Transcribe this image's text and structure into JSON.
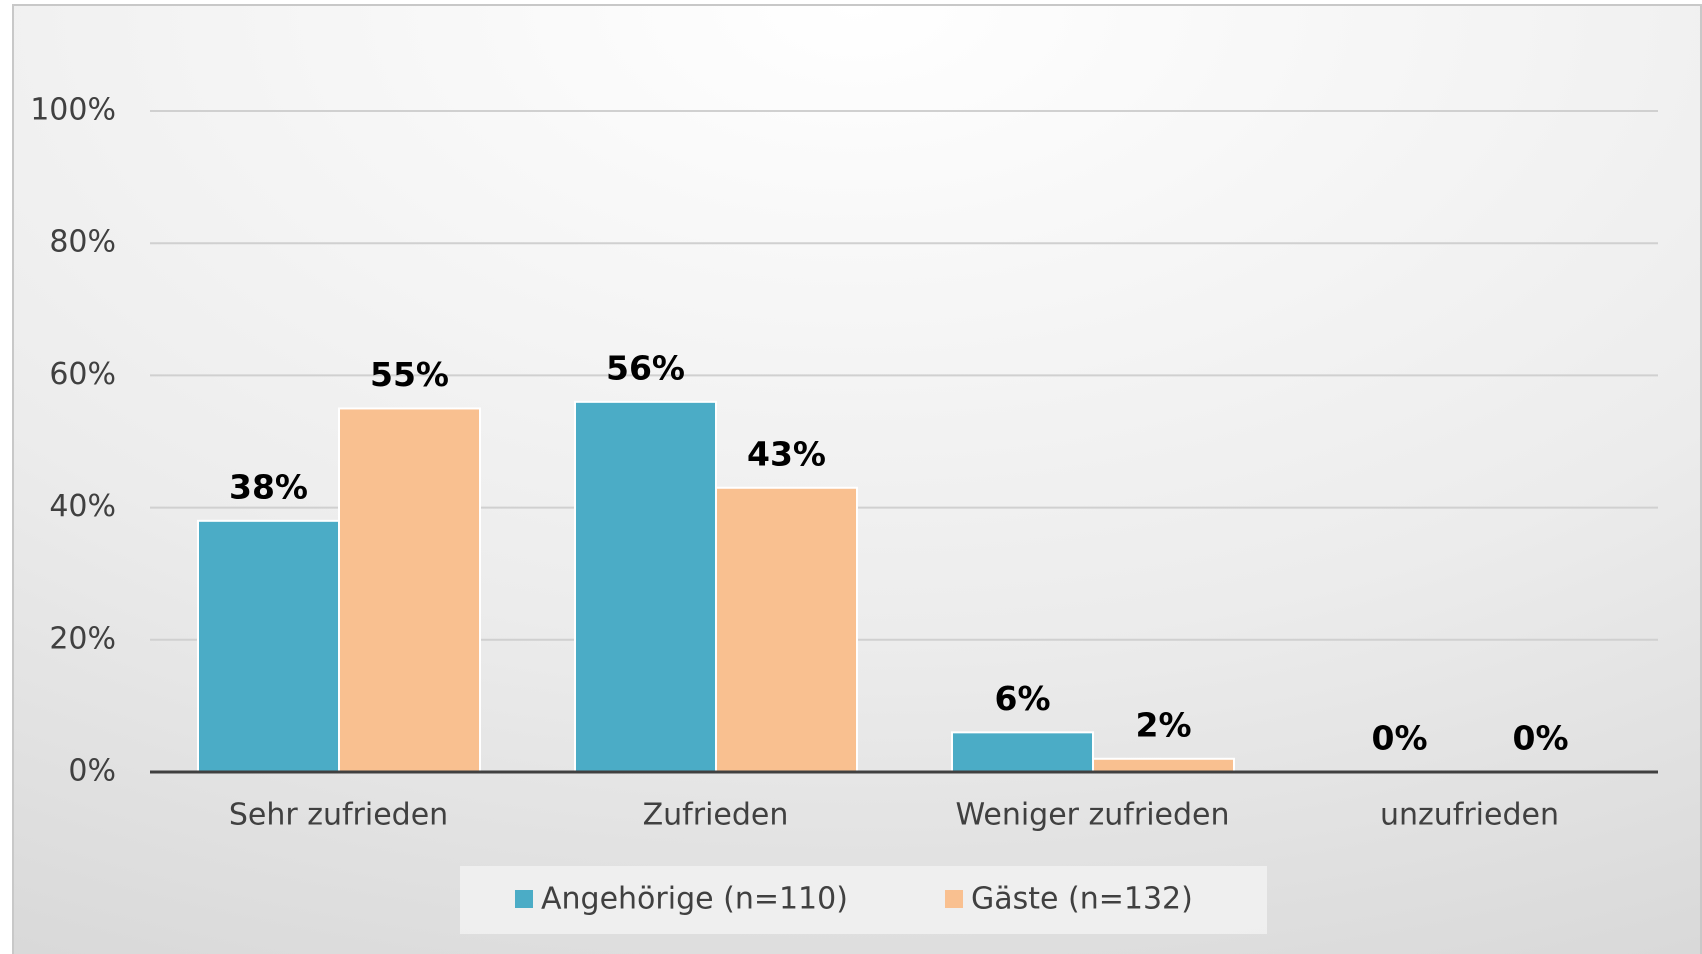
{
  "chart_data": {
    "type": "bar",
    "categories": [
      "Sehr zufrieden",
      "Zufrieden",
      "Weniger zufrieden",
      "unzufrieden"
    ],
    "series": [
      {
        "name": "Angehörige (n=110)",
        "color": "#4bacc6",
        "values": [
          38,
          56,
          6,
          0
        ],
        "value_labels": [
          "38%",
          "56%",
          "6%",
          "0%"
        ]
      },
      {
        "name": "Gäste (n=132)",
        "color": "#f9c090",
        "values": [
          55,
          43,
          2,
          0
        ],
        "value_labels": [
          "55%",
          "43%",
          "2%",
          "0%"
        ]
      }
    ],
    "ylim": [
      0,
      100
    ],
    "yticks": [
      {
        "value": 0,
        "label": "0%"
      },
      {
        "value": 20,
        "label": "20%"
      },
      {
        "value": 40,
        "label": "40%"
      },
      {
        "value": 60,
        "label": "60%"
      },
      {
        "value": 80,
        "label": "80%"
      },
      {
        "value": 100,
        "label": "100%"
      }
    ],
    "grid": true,
    "legend": "bottom"
  }
}
